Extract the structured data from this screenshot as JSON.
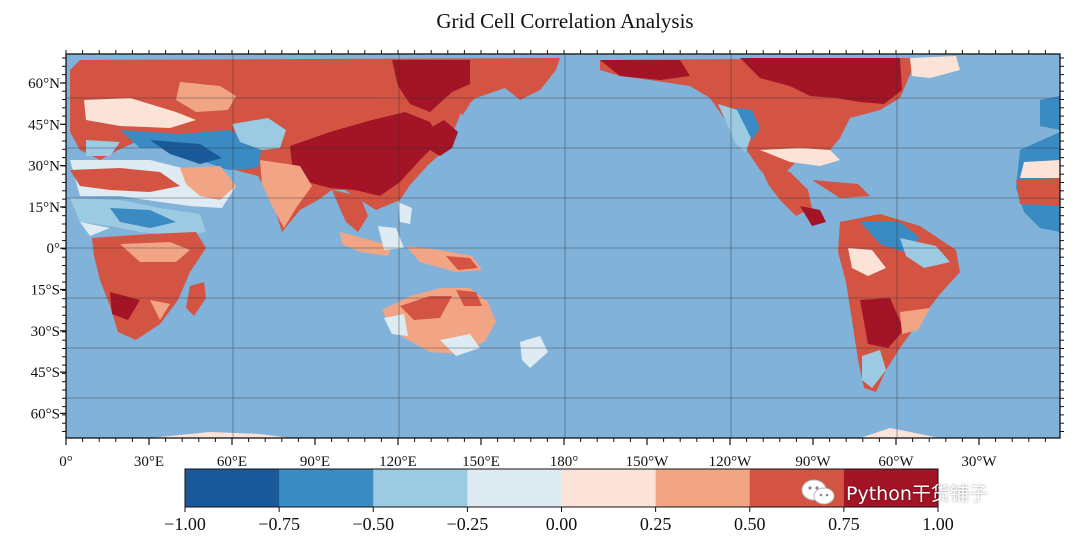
{
  "title": "Grid Cell Correlation Analysis",
  "lat_ticks": [
    "60°N",
    "45°N",
    "30°N",
    "15°N",
    "0°",
    "15°S",
    "30°S",
    "45°S",
    "60°S"
  ],
  "lon_ticks": [
    "0°",
    "30°E",
    "60°E",
    "90°E",
    "120°E",
    "150°E",
    "180°",
    "150°W",
    "120°W",
    "90°W",
    "60°W",
    "30°W"
  ],
  "colorbar": {
    "colors": [
      "#1b5a9a",
      "#3a8ac4",
      "#9ccae2",
      "#deebf3",
      "#fbe3d8",
      "#f2a585",
      "#d35443",
      "#a21426"
    ],
    "labels": [
      "−1.00",
      "−0.75",
      "−0.50",
      "−0.25",
      "0.00",
      "0.25",
      "0.50",
      "0.75",
      "1.00"
    ]
  },
  "ocean_color": "#7aaed6",
  "watermark": "Python干货铺子"
}
